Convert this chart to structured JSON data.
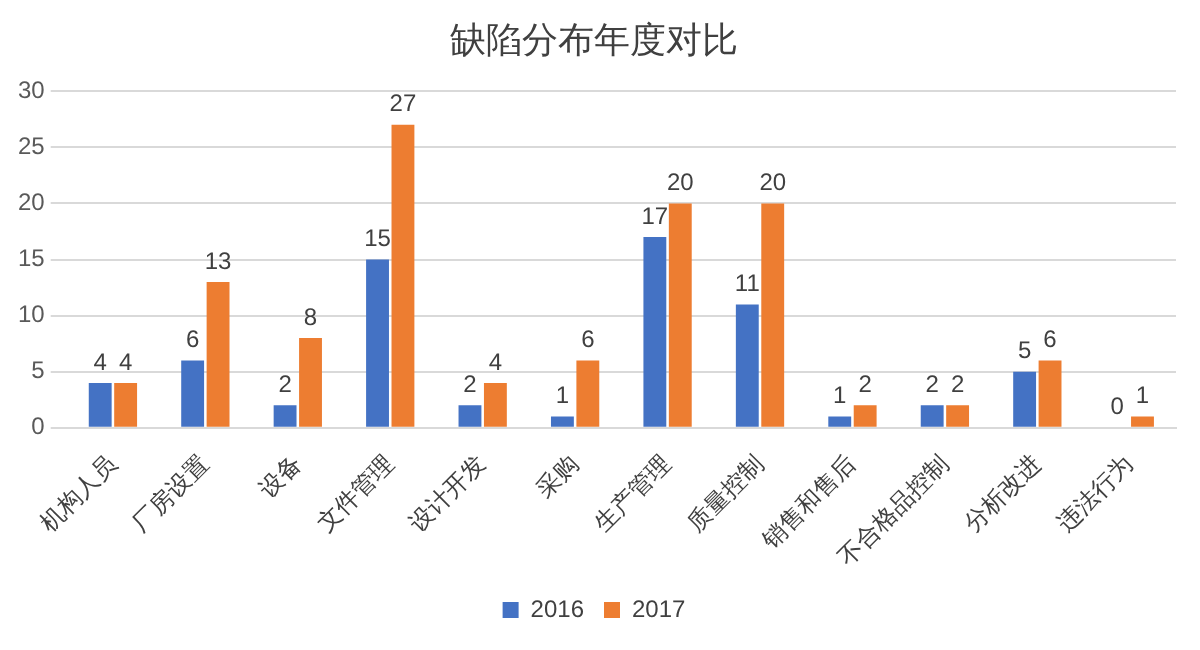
{
  "chart_data": {
    "type": "bar",
    "title": "缺陷分布年度对比",
    "categories": [
      "机构人员",
      "厂房设置",
      "设备",
      "文件管理",
      "设计开发",
      "采购",
      "生产管理",
      "质量控制",
      "销售和售后",
      "不合格品控制",
      "分析改进",
      "违法行为"
    ],
    "series": [
      {
        "name": "2016",
        "color": "#4472c4",
        "values": [
          4,
          6,
          2,
          15,
          2,
          1,
          17,
          11,
          1,
          2,
          5,
          0
        ]
      },
      {
        "name": "2017",
        "color": "#ed7d31",
        "values": [
          4,
          13,
          8,
          27,
          4,
          6,
          20,
          20,
          2,
          2,
          6,
          1
        ]
      }
    ],
    "ylim": [
      0,
      30
    ],
    "yticks": [
      0,
      5,
      10,
      15,
      20,
      25,
      30
    ],
    "grid": "y",
    "legend": "bottom",
    "data_labels": true
  }
}
